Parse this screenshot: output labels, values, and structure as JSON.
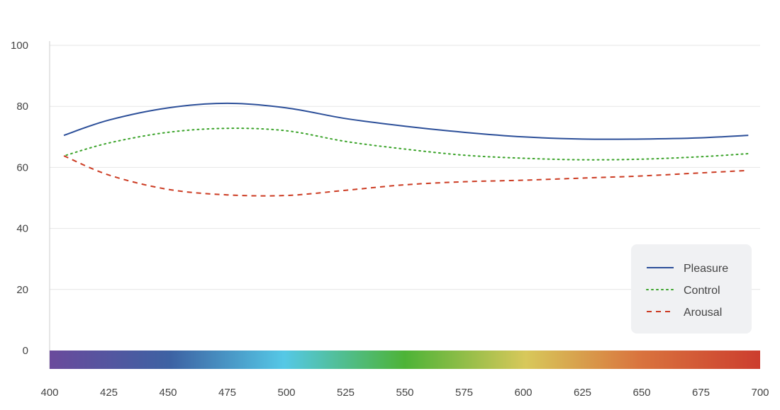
{
  "chart_data": {
    "type": "line",
    "title": "",
    "xlabel": "",
    "ylabel": "",
    "xlim": [
      400,
      700
    ],
    "ylim": [
      0,
      100
    ],
    "x_ticks": [
      "400",
      "425",
      "450",
      "475",
      "500",
      "525",
      "550",
      "575",
      "600",
      "625",
      "650",
      "675",
      "700"
    ],
    "y_ticks": [
      "0",
      "20",
      "40",
      "60",
      "80",
      "100"
    ],
    "grid": true,
    "legend_position": "bottom-right",
    "spectrum_bar": true,
    "series": [
      {
        "name": "Pleasure",
        "line_style": "solid",
        "color": "#2c4f99",
        "x": [
          406,
          425,
          450,
          475,
          500,
          525,
          550,
          575,
          600,
          625,
          650,
          675,
          695
        ],
        "y": [
          70.5,
          75.5,
          79.5,
          81.0,
          79.5,
          76.0,
          73.5,
          71.5,
          70.0,
          69.3,
          69.3,
          69.7,
          70.5
        ]
      },
      {
        "name": "Control",
        "line_style": "dotted",
        "color": "#3aa329",
        "x": [
          407,
          425,
          450,
          475,
          500,
          525,
          550,
          575,
          600,
          625,
          650,
          675,
          695
        ],
        "y": [
          64.0,
          68.0,
          71.5,
          72.8,
          72.0,
          68.5,
          66.0,
          64.0,
          63.0,
          62.5,
          62.7,
          63.5,
          64.5
        ]
      },
      {
        "name": "Arousal",
        "line_style": "dashed",
        "color": "#cc3b22",
        "x": [
          406,
          425,
          450,
          475,
          500,
          525,
          550,
          575,
          600,
          625,
          650,
          675,
          695
        ],
        "y": [
          63.8,
          57.5,
          52.8,
          51.0,
          50.8,
          52.5,
          54.3,
          55.3,
          55.8,
          56.5,
          57.2,
          58.2,
          59.0
        ]
      }
    ]
  }
}
